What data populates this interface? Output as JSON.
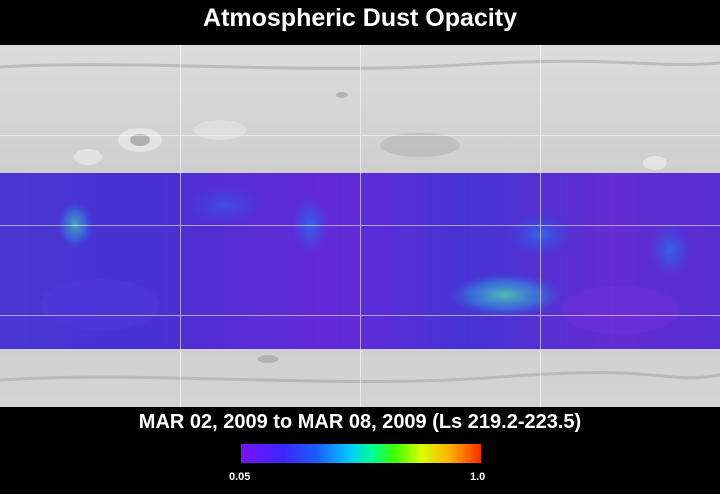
{
  "title": "Atmospheric Dust Opacity",
  "date_range": "MAR 02, 2009 to MAR 08, 2009 (Ls 219.2-223.5)",
  "colorbar": {
    "min_label": "0.05",
    "max_label": "1.0",
    "min_value": 0.05,
    "max_value": 1.0
  },
  "colors": {
    "background": "#000000",
    "terrain": "#c8c8c8",
    "low_opacity": "#7a10ff",
    "mid_opacity": "#1a60ff",
    "high_opacity": "#ff2a00"
  }
}
